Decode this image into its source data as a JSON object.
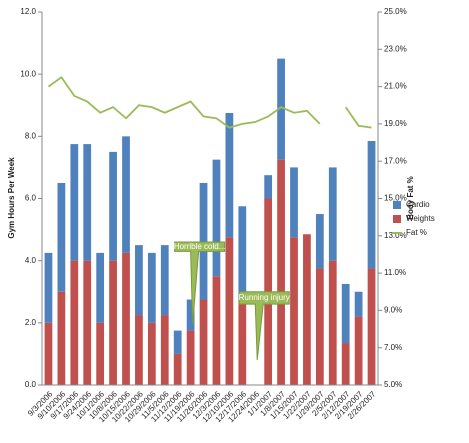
{
  "chart_data": {
    "type": "bar",
    "y_label": "Gym Hours Per Week",
    "y2_label": "Body Fat %",
    "categories": [
      "9/3/2006",
      "9/10/2006",
      "9/17/2006",
      "9/24/2006",
      "10/1/2006",
      "10/8/2006",
      "10/15/2006",
      "10/22/2006",
      "10/29/2006",
      "11/5/2006",
      "11/12/2006",
      "11/19/2006",
      "11/26/2006",
      "12/3/2006",
      "12/10/2006",
      "12/17/2006",
      "12/24/2006",
      "1/1/2007",
      "1/8/2007",
      "1/15/2007",
      "1/22/2007",
      "1/29/2007",
      "2/5/2007",
      "2/12/2007",
      "2/19/2007",
      "2/26/2007"
    ],
    "series": [
      {
        "name": "Cardio",
        "color": "#4f81bd",
        "values": [
          2.25,
          3.5,
          3.75,
          3.75,
          2.25,
          3.5,
          3.75,
          2.25,
          2.25,
          2.25,
          0.75,
          1,
          3.75,
          3.75,
          4,
          3,
          0,
          0.75,
          3.25,
          2.25,
          0,
          1.75,
          3,
          1.9,
          0.8,
          4.1
        ]
      },
      {
        "name": "Weights",
        "color": "#c0504d",
        "values": [
          2,
          3,
          4,
          4,
          2,
          4,
          4.25,
          2.25,
          2,
          2.25,
          1,
          1.75,
          2.75,
          3.5,
          4.75,
          2.75,
          0,
          6,
          7.25,
          4.75,
          4.85,
          3.75,
          4,
          1.35,
          2.2,
          3.75
        ]
      },
      {
        "name": "Fat %",
        "color": "#9bbb59",
        "axis": "y2",
        "values": [
          21.0,
          21.5,
          20.5,
          20.2,
          19.6,
          19.9,
          19.3,
          20.0,
          19.9,
          19.6,
          19.9,
          20.2,
          19.4,
          19.3,
          18.8,
          19.0,
          19.1,
          19.4,
          19.9,
          19.6,
          19.7,
          19.0,
          null,
          19.9,
          18.9,
          18.8
        ]
      }
    ],
    "annotations": [
      "Horrible cold...",
      "Running injury"
    ],
    "ylim": [
      0,
      12
    ],
    "yticks": [
      {
        "value": 0,
        "label": "0.0"
      },
      {
        "value": 2,
        "label": "2.0"
      },
      {
        "value": 4,
        "label": "4.0"
      },
      {
        "value": 6,
        "label": "6.0"
      },
      {
        "value": 8,
        "label": "8.0"
      },
      {
        "value": 10,
        "label": "10.0"
      },
      {
        "value": 12,
        "label": "12.0"
      }
    ],
    "y2lim": [
      5,
      25
    ],
    "y2ticks": [
      {
        "value": 5,
        "label": "5.0%"
      },
      {
        "value": 7,
        "label": "7.0%"
      },
      {
        "value": 9,
        "label": "9.0%"
      },
      {
        "value": 11,
        "label": "11.0%"
      },
      {
        "value": 13,
        "label": "13.0%"
      },
      {
        "value": 15,
        "label": "15.0%"
      },
      {
        "value": 17,
        "label": "17.0%"
      },
      {
        "value": 19,
        "label": "19.0%"
      },
      {
        "value": 21,
        "label": "21.0%"
      },
      {
        "value": 23,
        "label": "23.0%"
      },
      {
        "value": 25,
        "label": "25.0%"
      }
    ],
    "legend": "right"
  }
}
